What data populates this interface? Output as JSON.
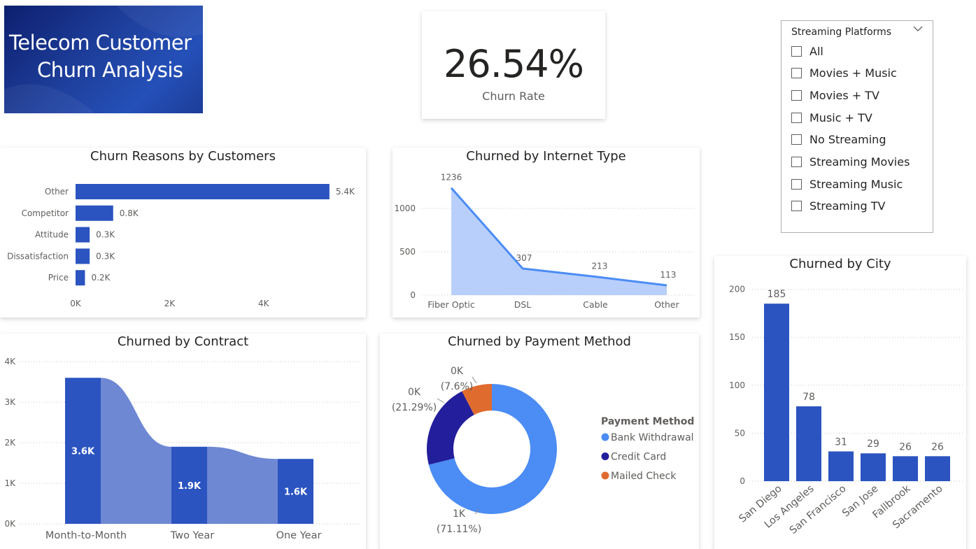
{
  "banner": {
    "line1": "Telecom Customer",
    "line2": "Churn Analysis"
  },
  "kpi": {
    "value": "26.54%",
    "label": "Churn Rate"
  },
  "slicer": {
    "title": "Streaming Platforms",
    "items": [
      "All",
      "Movies + Music",
      "Movies + TV",
      "Music + TV",
      "No Streaming",
      "Streaming Movies",
      "Streaming Music",
      "Streaming TV"
    ]
  },
  "colors": {
    "bar": "#2B54C1",
    "bar_light": "#6E88D3",
    "area": "#B9CFFB",
    "line": "#4B8CF5",
    "bank": "#4B8CF5",
    "credit": "#231E9B",
    "mailed": "#E06B2E"
  },
  "chart_data": [
    {
      "id": "reasons",
      "type": "bar",
      "orientation": "horizontal",
      "title": "Churn Reasons by Customers",
      "categories": [
        "Other",
        "Competitor",
        "Attitude",
        "Dissatisfaction",
        "Price"
      ],
      "values": [
        5.4,
        0.8,
        0.3,
        0.3,
        0.2
      ],
      "data_labels": [
        "5.4K",
        "0.8K",
        "0.3K",
        "0.3K",
        "0.2K"
      ],
      "xticks": [
        "0K",
        "2K",
        "4K"
      ],
      "xlim": [
        0,
        6
      ]
    },
    {
      "id": "internet",
      "type": "area",
      "title": "Churned by Internet Type",
      "categories": [
        "Fiber Optic",
        "DSL",
        "Cable",
        "Other"
      ],
      "values": [
        1236,
        307,
        213,
        113
      ],
      "yticks": [
        "0",
        "500",
        "1000"
      ],
      "ylim": [
        0,
        1300
      ]
    },
    {
      "id": "contract",
      "type": "bar",
      "title": "Churned by Contract",
      "categories": [
        "Month-to-Month",
        "Two Year",
        "One Year"
      ],
      "values": [
        3.6,
        1.9,
        1.6
      ],
      "data_labels": [
        "3.6K",
        "1.9K",
        "1.6K"
      ],
      "yticks": [
        "0K",
        "1K",
        "2K",
        "3K",
        "4K"
      ],
      "ylim": [
        0,
        4
      ]
    },
    {
      "id": "payment",
      "type": "pie",
      "title": "Churned by Payment Method",
      "legend_title": "Payment Method",
      "legend_position": "right",
      "slices": [
        {
          "name": "Bank Withdrawal",
          "pct": 71.11,
          "label": "1K",
          "pct_label": "(71.11%)"
        },
        {
          "name": "Credit Card",
          "pct": 21.29,
          "label": "0K",
          "pct_label": "(21.29%)"
        },
        {
          "name": "Mailed Check",
          "pct": 7.6,
          "label": "0K",
          "pct_label": "(7.6%)"
        }
      ]
    },
    {
      "id": "city",
      "type": "bar",
      "title": "Churned by City",
      "categories": [
        "San Diego",
        "Los Angeles",
        "San Francisco",
        "San Jose",
        "Fallbrook",
        "Sacramento"
      ],
      "values": [
        185,
        78,
        31,
        29,
        26,
        26
      ],
      "yticks": [
        "0",
        "50",
        "100",
        "150",
        "200"
      ],
      "ylim": [
        0,
        200
      ]
    }
  ]
}
